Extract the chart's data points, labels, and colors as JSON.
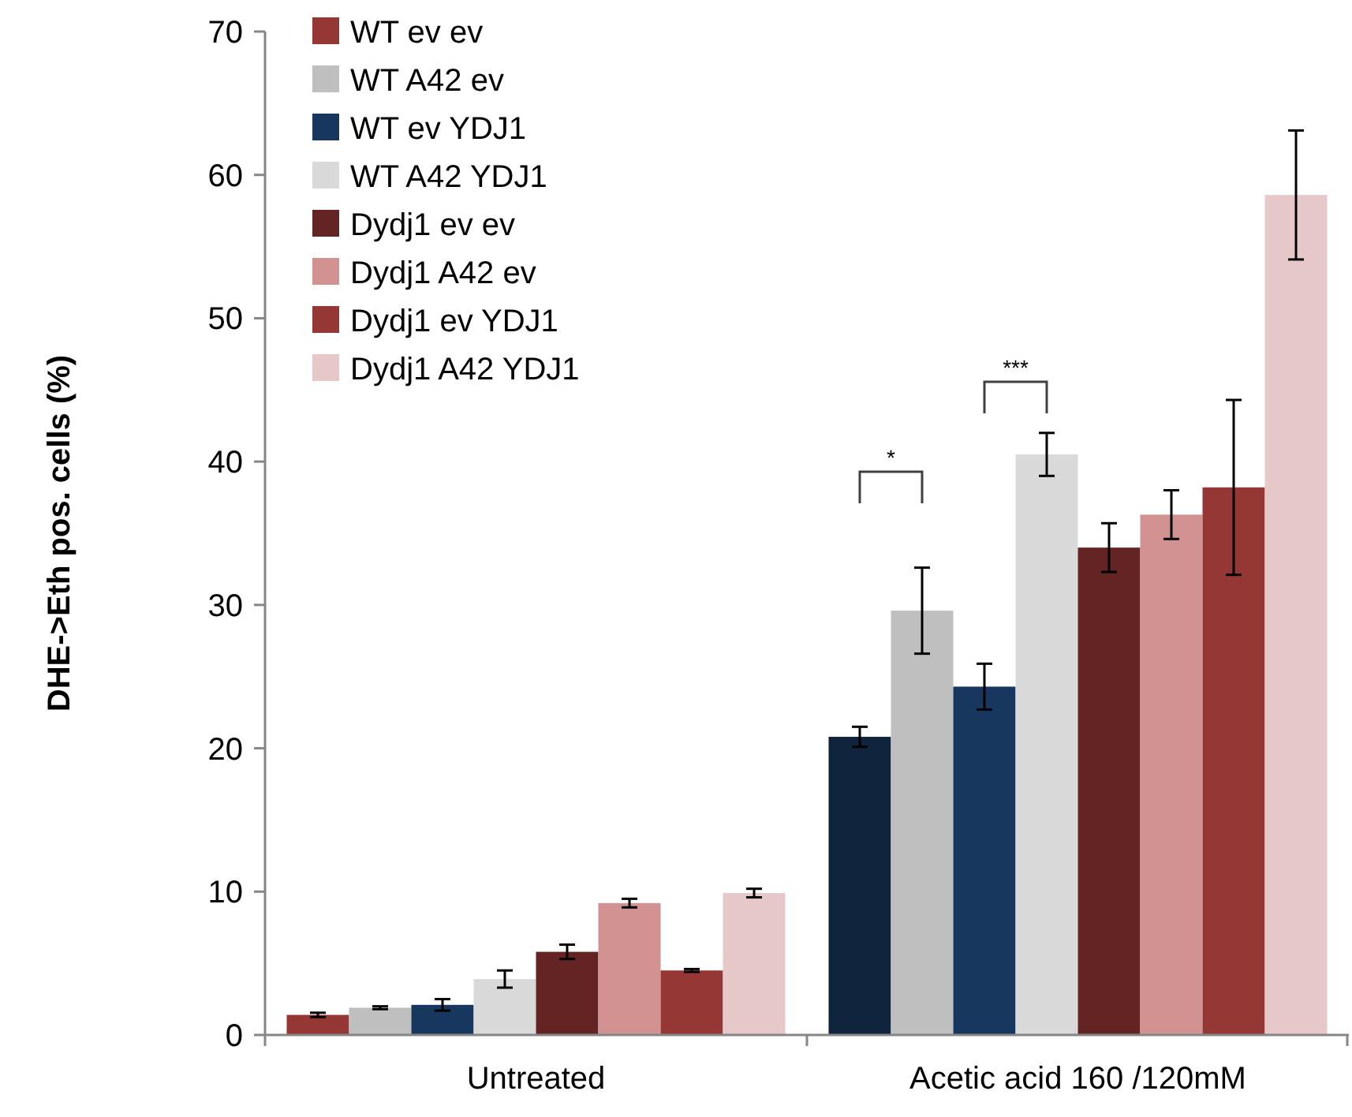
{
  "chart_data": {
    "type": "bar",
    "ylabel": "DHE->Eth pos. cells (%)",
    "categories": [
      "Untreated",
      "Acetic acid 160 /120mM"
    ],
    "series": [
      {
        "name": "WT ev ev",
        "color": "#953735",
        "colors": [
          "#953735",
          "#10243e"
        ],
        "values": [
          1.4,
          20.8
        ],
        "errors": [
          0.15,
          0.7
        ]
      },
      {
        "name": "WT A42 ev",
        "color": "#bfbfbf",
        "values": [
          1.9,
          29.6
        ],
        "errors": [
          0.1,
          3.0
        ]
      },
      {
        "name": "WT ev YDJ1",
        "color": "#17375e",
        "values": [
          2.1,
          24.3
        ],
        "errors": [
          0.4,
          1.6
        ]
      },
      {
        "name": "WT A42 YDJ1",
        "color": "#d9d9d9",
        "values": [
          3.9,
          40.5
        ],
        "errors": [
          0.6,
          1.5
        ]
      },
      {
        "name": "Dydj1 ev ev",
        "color": "#632423",
        "values": [
          5.8,
          34.0
        ],
        "errors": [
          0.5,
          1.7
        ]
      },
      {
        "name": "Dydj1 A42 ev",
        "color": "#d39292",
        "values": [
          9.2,
          36.3
        ],
        "errors": [
          0.3,
          1.7
        ]
      },
      {
        "name": "Dydj1 ev YDJ1",
        "color": "#953735",
        "values": [
          4.5,
          38.2
        ],
        "errors": [
          0.1,
          6.1
        ]
      },
      {
        "name": "Dydj1 A42 YDJ1",
        "color": "#e6c8c9",
        "values": [
          9.9,
          58.6
        ],
        "errors": [
          0.3,
          4.5
        ]
      }
    ],
    "annotations": [
      "*",
      "***"
    ],
    "ylim": [
      0,
      70
    ],
    "yticks": [
      0,
      10,
      20,
      30,
      40,
      50,
      60,
      70
    ],
    "grid": false,
    "legend": "top left"
  }
}
